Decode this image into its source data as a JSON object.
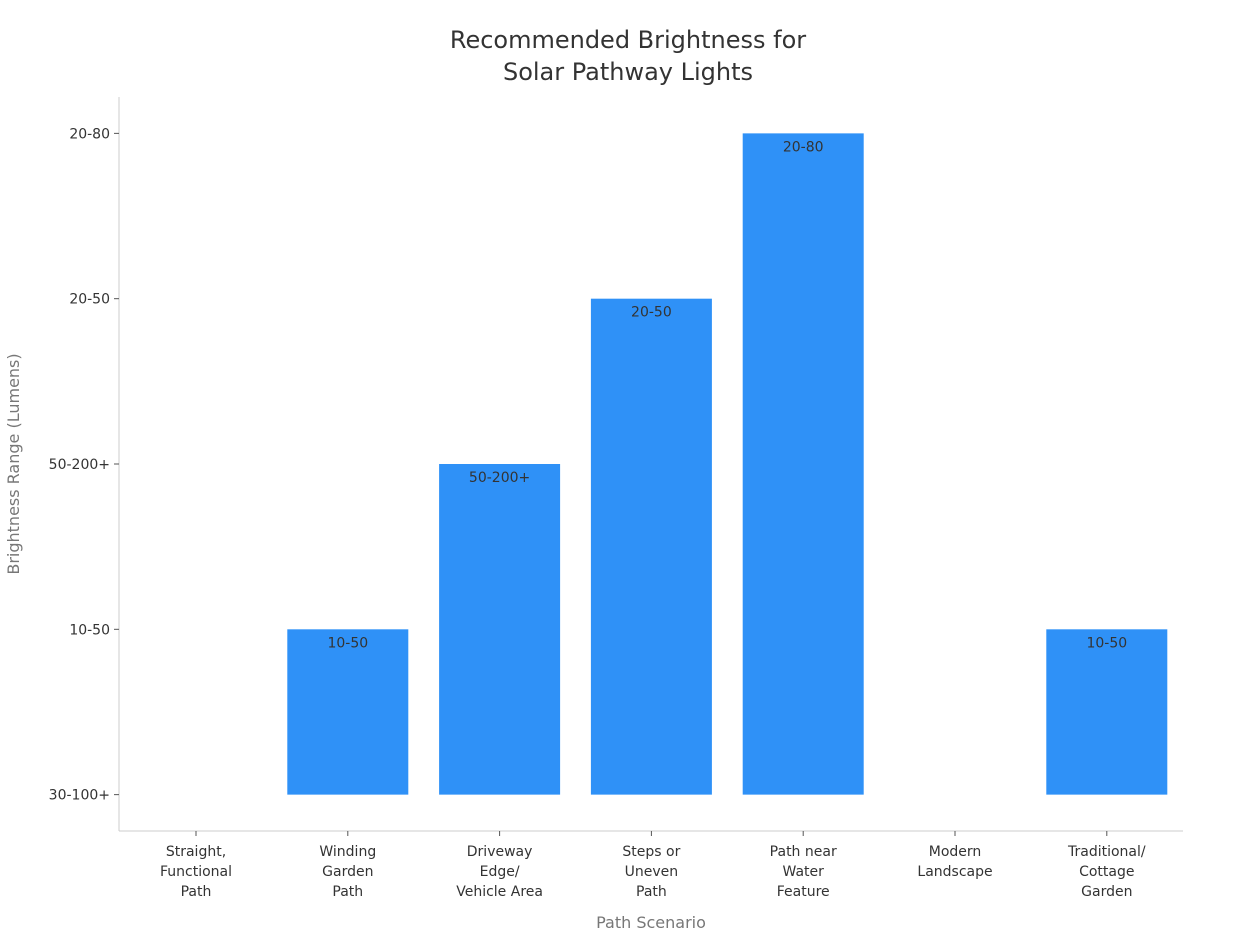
{
  "chart_data": {
    "type": "bar",
    "title_lines": [
      "Recommended Brightness for",
      "Solar Pathway Lights"
    ],
    "xlabel": "Path Scenario",
    "ylabel": "Brightness Range (Lumens)",
    "y_tick_labels": [
      "30-100+",
      "10-50",
      "50-200+",
      "20-50",
      "20-80"
    ],
    "ylim": [
      -0.22,
      4.22
    ],
    "categories": [
      [
        "Straight,",
        "Functional",
        "Path"
      ],
      [
        "Winding",
        "Garden",
        "Path"
      ],
      [
        "Driveway",
        "Edge/",
        "Vehicle Area"
      ],
      [
        "Steps or",
        "Uneven",
        "Path"
      ],
      [
        "Path near",
        "Water",
        "Feature"
      ],
      [
        "Modern",
        "Landscape"
      ],
      [
        "Traditional/",
        "Cottage",
        "Garden"
      ]
    ],
    "values": [
      0,
      1,
      2,
      3,
      4,
      0,
      1
    ],
    "data_labels": [
      "",
      "10-50",
      "50-200+",
      "20-50",
      "20-80",
      "",
      "10-50"
    ],
    "bar_color": "#2f91f7",
    "grid": false,
    "legend": "none"
  }
}
